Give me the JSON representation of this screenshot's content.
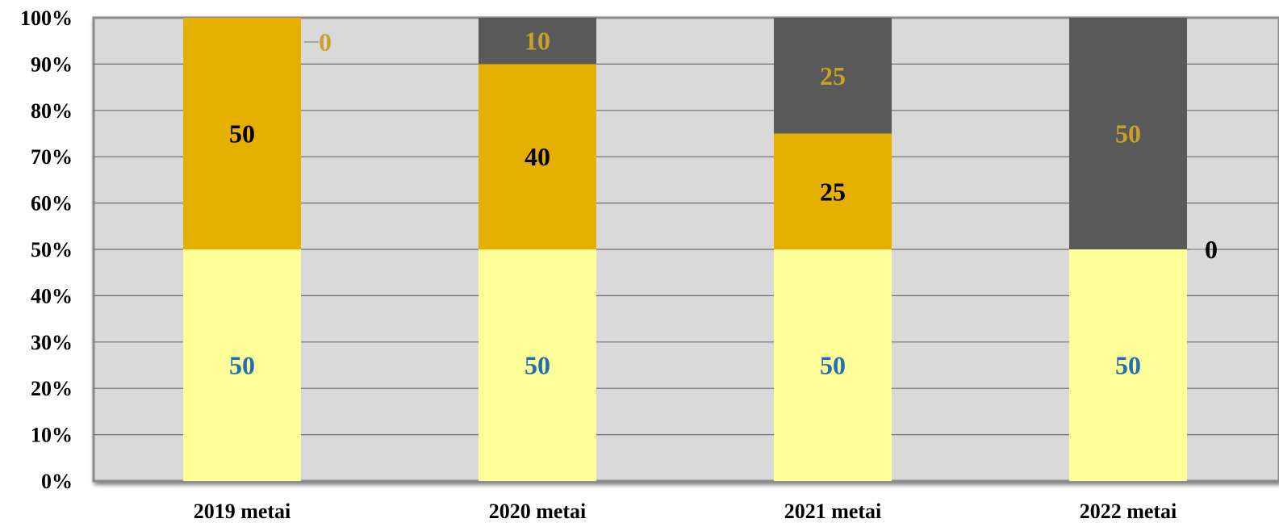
{
  "chart_data": {
    "type": "bar",
    "stacked": true,
    "percent_stacked": true,
    "categories": [
      "2019 metai",
      "2020 metai",
      "2021 metai",
      "2022 metai"
    ],
    "series": [
      {
        "values": [
          50,
          50,
          50,
          50
        ],
        "color": "#FFFF99",
        "label_color": "#1F6FB5"
      },
      {
        "values": [
          50,
          40,
          25,
          0
        ],
        "color": "#E6B000",
        "label_color": "#000000"
      },
      {
        "values": [
          0,
          10,
          25,
          50
        ],
        "color": "#595959",
        "label_color": "#C9A227"
      }
    ],
    "y_ticks": [
      "0%",
      "10%",
      "20%",
      "30%",
      "40%",
      "50%",
      "60%",
      "70%",
      "80%",
      "90%",
      "100%"
    ],
    "ylim": [
      0,
      100
    ],
    "grid": true,
    "plot_background": "#D9D9D9",
    "title": "",
    "xlabel": "",
    "ylabel": ""
  }
}
